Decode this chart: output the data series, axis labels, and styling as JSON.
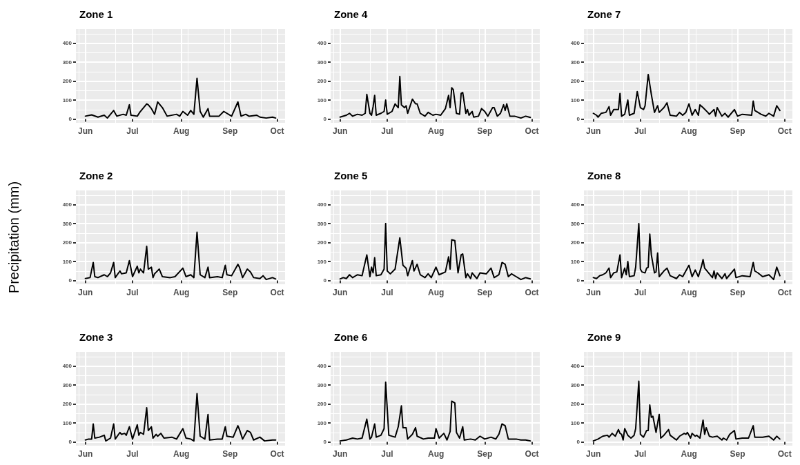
{
  "chart_data": [
    {
      "type": "line",
      "title": "Zone 1",
      "color": "#000000",
      "grid": true,
      "xlim": [
        "--05-26",
        "--10-06"
      ],
      "xticks": [
        {
          "value": "--06-01",
          "label": "Jun"
        },
        {
          "value": "--07-01",
          "label": "Jul"
        },
        {
          "value": "--08-01",
          "label": "Aug"
        },
        {
          "value": "--09-01",
          "label": "Sep"
        },
        {
          "value": "--10-01",
          "label": "Oct"
        }
      ],
      "ylim": [
        -20,
        475
      ],
      "yticks": [
        0,
        100,
        200,
        300,
        400
      ],
      "x": [
        "--06-01",
        "--06-05",
        "--06-09",
        "--06-13",
        "--06-15",
        "--06-19",
        "--06-21",
        "--06-25",
        "--06-27",
        "--06-29",
        "--06-30",
        "--07-04",
        "--07-06",
        "--07-10",
        "--07-11",
        "--07-13",
        "--07-15",
        "--07-17",
        "--07-20",
        "--07-23",
        "--07-29",
        "--07-31",
        "--08-02",
        "--08-05",
        "--08-07",
        "--08-09",
        "--08-11",
        "--08-13",
        "--08-15",
        "--08-18",
        "--08-19",
        "--08-25",
        "--08-28",
        "--09-02",
        "--09-06",
        "--09-08",
        "--09-11",
        "--09-13",
        "--09-18",
        "--09-20",
        "--09-24",
        "--09-28",
        "--09-30"
      ],
      "values": [
        15,
        22,
        10,
        20,
        5,
        45,
        15,
        25,
        20,
        75,
        20,
        15,
        40,
        80,
        75,
        55,
        25,
        90,
        60,
        15,
        25,
        15,
        40,
        20,
        45,
        25,
        215,
        40,
        10,
        55,
        15,
        15,
        40,
        15,
        90,
        15,
        25,
        15,
        20,
        10,
        5,
        10,
        5
      ]
    },
    {
      "type": "line",
      "title": "Zone 4",
      "color": "#000000",
      "grid": true,
      "xlim": [
        "--05-26",
        "--10-06"
      ],
      "xticks": [
        {
          "value": "--06-01",
          "label": "Jun"
        },
        {
          "value": "--07-01",
          "label": "Jul"
        },
        {
          "value": "--08-01",
          "label": "Aug"
        },
        {
          "value": "--09-01",
          "label": "Sep"
        },
        {
          "value": "--10-01",
          "label": "Oct"
        }
      ],
      "ylim": [
        -20,
        475
      ],
      "yticks": [
        0,
        100,
        200,
        300,
        400
      ],
      "x": [
        "--06-01",
        "--06-05",
        "--06-07",
        "--06-09",
        "--06-12",
        "--06-15",
        "--06-17",
        "--06-18",
        "--06-20",
        "--06-21",
        "--06-22",
        "--06-23",
        "--06-24",
        "--06-27",
        "--06-29",
        "--06-30",
        "--07-01",
        "--07-04",
        "--07-06",
        "--07-08",
        "--07-09",
        "--07-10",
        "--07-12",
        "--07-13",
        "--07-14",
        "--07-17",
        "--07-19",
        "--07-20",
        "--07-22",
        "--07-25",
        "--07-27",
        "--07-30",
        "--08-01",
        "--08-04",
        "--08-07",
        "--08-09",
        "--08-10",
        "--08-11",
        "--08-12",
        "--08-14",
        "--08-16",
        "--08-17",
        "--08-18",
        "--08-20",
        "--08-21",
        "--08-22",
        "--08-24",
        "--08-25",
        "--08-28",
        "--08-30",
        "--09-01",
        "--09-03",
        "--09-06",
        "--09-07",
        "--09-09",
        "--09-11",
        "--09-13",
        "--09-14",
        "--09-15",
        "--09-17",
        "--09-20",
        "--09-24",
        "--09-27",
        "--09-30"
      ],
      "values": [
        10,
        20,
        30,
        15,
        25,
        20,
        30,
        130,
        30,
        20,
        65,
        125,
        20,
        30,
        40,
        100,
        25,
        40,
        80,
        60,
        225,
        75,
        60,
        70,
        30,
        105,
        80,
        80,
        30,
        15,
        35,
        20,
        25,
        20,
        55,
        125,
        60,
        165,
        155,
        30,
        25,
        135,
        140,
        30,
        50,
        20,
        40,
        10,
        15,
        55,
        40,
        15,
        60,
        60,
        15,
        30,
        75,
        45,
        80,
        15,
        15,
        5,
        15,
        8
      ]
    },
    {
      "type": "line",
      "title": "Zone 7",
      "color": "#000000",
      "grid": true,
      "xlim": [
        "--05-26",
        "--10-06"
      ],
      "xticks": [
        {
          "value": "--06-01",
          "label": "Jun"
        },
        {
          "value": "--07-01",
          "label": "Jul"
        },
        {
          "value": "--08-01",
          "label": "Aug"
        },
        {
          "value": "--09-01",
          "label": "Sep"
        },
        {
          "value": "--10-01",
          "label": "Oct"
        }
      ],
      "ylim": [
        -20,
        475
      ],
      "yticks": [
        0,
        100,
        200,
        300,
        400
      ],
      "x": [
        "--06-01",
        "--06-03",
        "--06-04",
        "--06-06",
        "--06-09",
        "--06-11",
        "--06-12",
        "--06-14",
        "--06-17",
        "--06-18",
        "--06-19",
        "--06-21",
        "--06-23",
        "--06-24",
        "--06-27",
        "--06-29",
        "--07-01",
        "--07-03",
        "--07-04",
        "--07-06",
        "--07-08",
        "--07-10",
        "--07-12",
        "--07-13",
        "--07-16",
        "--07-18",
        "--07-20",
        "--07-24",
        "--07-26",
        "--07-28",
        "--07-30",
        "--08-01",
        "--08-03",
        "--08-05",
        "--08-07",
        "--08-08",
        "--08-10",
        "--08-13",
        "--08-14",
        "--08-17",
        "--08-18",
        "--08-19",
        "--08-22",
        "--08-24",
        "--08-26",
        "--08-30",
        "--09-01",
        "--09-04",
        "--09-10",
        "--09-11",
        "--09-12",
        "--09-16",
        "--09-19",
        "--09-21",
        "--09-24",
        "--09-26",
        "--09-28"
      ],
      "values": [
        30,
        20,
        10,
        30,
        35,
        65,
        20,
        50,
        50,
        135,
        15,
        25,
        100,
        20,
        30,
        145,
        60,
        50,
        70,
        235,
        130,
        35,
        70,
        35,
        60,
        85,
        20,
        15,
        35,
        20,
        35,
        80,
        20,
        50,
        20,
        75,
        60,
        35,
        25,
        50,
        15,
        60,
        15,
        30,
        10,
        50,
        15,
        25,
        20,
        95,
        45,
        25,
        15,
        30,
        15,
        70,
        45
      ]
    },
    {
      "type": "line",
      "title": "Zone 2",
      "ylabel": "Precipitation (mm)",
      "color": "#000000",
      "grid": true,
      "xlim": [
        "--05-26",
        "--10-06"
      ],
      "xticks": [
        {
          "value": "--06-01",
          "label": "Jun"
        },
        {
          "value": "--07-01",
          "label": "Jul"
        },
        {
          "value": "--08-01",
          "label": "Aug"
        },
        {
          "value": "--09-01",
          "label": "Sep"
        },
        {
          "value": "--10-01",
          "label": "Oct"
        }
      ],
      "ylim": [
        -20,
        475
      ],
      "yticks": [
        0,
        100,
        200,
        300,
        400
      ],
      "x": [
        "--06-01",
        "--06-04",
        "--06-06",
        "--06-07",
        "--06-09",
        "--06-13",
        "--06-15",
        "--06-17",
        "--06-19",
        "--06-20",
        "--06-23",
        "--06-24",
        "--06-27",
        "--06-29",
        "--07-01",
        "--07-04",
        "--07-05",
        "--07-06",
        "--07-08",
        "--07-10",
        "--07-11",
        "--07-13",
        "--07-14",
        "--07-15",
        "--07-18",
        "--07-20",
        "--07-25",
        "--07-28",
        "--08-02",
        "--08-04",
        "--08-07",
        "--08-09",
        "--08-11",
        "--08-13",
        "--08-16",
        "--08-18",
        "--08-19",
        "--08-24",
        "--08-27",
        "--08-29",
        "--08-30",
        "--09-02",
        "--09-06",
        "--09-07",
        "--09-09",
        "--09-12",
        "--09-14",
        "--09-16",
        "--09-20",
        "--09-22",
        "--09-24",
        "--09-28",
        "--09-30"
      ],
      "values": [
        10,
        15,
        95,
        20,
        15,
        30,
        20,
        40,
        95,
        15,
        50,
        35,
        40,
        105,
        20,
        75,
        40,
        60,
        40,
        180,
        60,
        70,
        15,
        35,
        60,
        20,
        15,
        20,
        65,
        20,
        30,
        15,
        255,
        30,
        15,
        70,
        15,
        20,
        15,
        80,
        30,
        25,
        85,
        70,
        15,
        60,
        45,
        15,
        10,
        25,
        5,
        15,
        8
      ]
    },
    {
      "type": "line",
      "title": "Zone 5",
      "color": "#000000",
      "grid": true,
      "xlim": [
        "--05-26",
        "--10-06"
      ],
      "xticks": [
        {
          "value": "--06-01",
          "label": "Jun"
        },
        {
          "value": "--07-01",
          "label": "Jul"
        },
        {
          "value": "--08-01",
          "label": "Aug"
        },
        {
          "value": "--09-01",
          "label": "Sep"
        },
        {
          "value": "--10-01",
          "label": "Oct"
        }
      ],
      "ylim": [
        -20,
        475
      ],
      "yticks": [
        0,
        100,
        200,
        300,
        400
      ],
      "x": [
        "--06-01",
        "--06-03",
        "--06-05",
        "--06-07",
        "--06-09",
        "--06-12",
        "--06-15",
        "--06-18",
        "--06-20",
        "--06-21",
        "--06-22",
        "--06-23",
        "--06-24",
        "--06-27",
        "--06-29",
        "--06-30",
        "--07-01",
        "--07-03",
        "--07-06",
        "--07-09",
        "--07-11",
        "--07-13",
        "--07-14",
        "--07-17",
        "--07-18",
        "--07-20",
        "--07-22",
        "--07-25",
        "--07-27",
        "--07-29",
        "--08-01",
        "--08-03",
        "--08-07",
        "--08-09",
        "--08-10",
        "--08-11",
        "--08-13",
        "--08-15",
        "--08-17",
        "--08-18",
        "--08-20",
        "--08-21",
        "--08-23",
        "--08-24",
        "--08-27",
        "--08-29",
        "--09-02",
        "--09-05",
        "--09-07",
        "--09-10",
        "--09-12",
        "--09-14",
        "--09-16",
        "--09-18",
        "--09-21",
        "--09-24",
        "--09-27",
        "--09-30"
      ],
      "values": [
        8,
        15,
        10,
        30,
        15,
        30,
        25,
        135,
        20,
        70,
        40,
        120,
        25,
        30,
        60,
        300,
        50,
        35,
        60,
        225,
        80,
        65,
        25,
        105,
        50,
        85,
        30,
        15,
        35,
        15,
        70,
        30,
        45,
        125,
        60,
        215,
        210,
        40,
        135,
        140,
        15,
        35,
        10,
        40,
        10,
        40,
        35,
        65,
        15,
        30,
        95,
        85,
        20,
        35,
        20,
        5,
        15,
        8
      ]
    },
    {
      "type": "line",
      "title": "Zone 8",
      "color": "#000000",
      "grid": true,
      "xlim": [
        "--05-26",
        "--10-06"
      ],
      "xticks": [
        {
          "value": "--06-01",
          "label": "Jun"
        },
        {
          "value": "--07-01",
          "label": "Jul"
        },
        {
          "value": "--08-01",
          "label": "Aug"
        },
        {
          "value": "--09-01",
          "label": "Sep"
        },
        {
          "value": "--10-01",
          "label": "Oct"
        }
      ],
      "ylim": [
        -20,
        475
      ],
      "yticks": [
        0,
        100,
        200,
        300,
        400
      ],
      "x": [
        "--06-01",
        "--06-03",
        "--06-05",
        "--06-07",
        "--06-09",
        "--06-11",
        "--06-12",
        "--06-14",
        "--06-16",
        "--06-18",
        "--06-19",
        "--06-21",
        "--06-22",
        "--06-23",
        "--06-24",
        "--06-27",
        "--06-28",
        "--06-30",
        "--07-01",
        "--07-02",
        "--07-04",
        "--07-05",
        "--07-06",
        "--07-07",
        "--07-08",
        "--07-10",
        "--07-11",
        "--07-12",
        "--07-13",
        "--07-16",
        "--07-18",
        "--07-20",
        "--07-24",
        "--07-26",
        "--07-28",
        "--08-01",
        "--08-03",
        "--08-05",
        "--08-07",
        "--08-09",
        "--08-10",
        "--08-11",
        "--08-14",
        "--08-16",
        "--08-17",
        "--08-18",
        "--08-19",
        "--08-22",
        "--08-24",
        "--08-25",
        "--08-30",
        "--08-31",
        "--09-04",
        "--09-09",
        "--09-11",
        "--09-12",
        "--09-14",
        "--09-17",
        "--09-21",
        "--09-24",
        "--09-26",
        "--09-28"
      ],
      "values": [
        15,
        10,
        25,
        30,
        40,
        65,
        15,
        40,
        45,
        135,
        15,
        65,
        30,
        100,
        20,
        25,
        70,
        300,
        60,
        45,
        40,
        65,
        70,
        245,
        135,
        40,
        45,
        145,
        20,
        50,
        65,
        25,
        10,
        30,
        20,
        80,
        20,
        55,
        20,
        75,
        110,
        65,
        35,
        15,
        50,
        10,
        40,
        10,
        35,
        10,
        60,
        15,
        25,
        20,
        95,
        50,
        40,
        20,
        30,
        5,
        70,
        25
      ]
    },
    {
      "type": "line",
      "title": "Zone 3",
      "color": "#000000",
      "grid": true,
      "xlim": [
        "--05-26",
        "--10-06"
      ],
      "xticks": [
        {
          "value": "--06-01",
          "label": "Jun"
        },
        {
          "value": "--07-01",
          "label": "Jul"
        },
        {
          "value": "--08-01",
          "label": "Aug"
        },
        {
          "value": "--09-01",
          "label": "Sep"
        },
        {
          "value": "--10-01",
          "label": "Oct"
        }
      ],
      "ylim": [
        -20,
        475
      ],
      "yticks": [
        0,
        100,
        200,
        300,
        400
      ],
      "x": [
        "--06-01",
        "--06-03",
        "--06-05",
        "--06-06",
        "--06-07",
        "--06-10",
        "--06-13",
        "--06-14",
        "--06-17",
        "--06-19",
        "--06-20",
        "--06-23",
        "--06-24",
        "--06-26",
        "--06-27",
        "--06-29",
        "--07-01",
        "--07-04",
        "--07-05",
        "--07-06",
        "--07-08",
        "--07-10",
        "--07-11",
        "--07-13",
        "--07-14",
        "--07-16",
        "--07-17",
        "--07-19",
        "--07-21",
        "--07-26",
        "--07-29",
        "--08-02",
        "--08-04",
        "--08-07",
        "--08-09",
        "--08-11",
        "--08-13",
        "--08-16",
        "--08-18",
        "--08-19",
        "--08-24",
        "--08-27",
        "--08-29",
        "--08-30",
        "--09-03",
        "--09-06",
        "--09-07",
        "--09-09",
        "--09-12",
        "--09-14",
        "--09-16",
        "--09-20",
        "--09-23",
        "--09-28",
        "--09-30"
      ],
      "values": [
        10,
        15,
        15,
        95,
        20,
        25,
        35,
        5,
        20,
        95,
        15,
        50,
        40,
        45,
        35,
        80,
        15,
        90,
        35,
        50,
        40,
        180,
        60,
        80,
        20,
        40,
        30,
        45,
        20,
        25,
        15,
        70,
        20,
        15,
        5,
        255,
        30,
        15,
        145,
        10,
        15,
        15,
        80,
        30,
        25,
        85,
        65,
        15,
        60,
        50,
        10,
        25,
        5,
        10,
        10
      ]
    },
    {
      "type": "line",
      "title": "Zone 6",
      "color": "#000000",
      "grid": true,
      "xlim": [
        "--05-26",
        "--10-06"
      ],
      "xticks": [
        {
          "value": "--06-01",
          "label": "Jun"
        },
        {
          "value": "--07-01",
          "label": "Jul"
        },
        {
          "value": "--08-01",
          "label": "Aug"
        },
        {
          "value": "--09-01",
          "label": "Sep"
        },
        {
          "value": "--10-01",
          "label": "Oct"
        }
      ],
      "ylim": [
        -20,
        475
      ],
      "yticks": [
        0,
        100,
        200,
        300,
        400
      ],
      "x": [
        "--06-01",
        "--06-05",
        "--06-09",
        "--06-12",
        "--06-15",
        "--06-18",
        "--06-20",
        "--06-21",
        "--06-23",
        "--06-24",
        "--06-27",
        "--06-29",
        "--06-30",
        "--07-02",
        "--07-06",
        "--07-08",
        "--07-10",
        "--07-11",
        "--07-13",
        "--07-14",
        "--07-17",
        "--07-19",
        "--07-20",
        "--07-24",
        "--07-27",
        "--07-31",
        "--08-01",
        "--08-03",
        "--08-06",
        "--08-08",
        "--08-10",
        "--08-11",
        "--08-13",
        "--08-14",
        "--08-16",
        "--08-18",
        "--08-19",
        "--08-23",
        "--08-26",
        "--08-29",
        "--09-01",
        "--09-05",
        "--09-08",
        "--09-10",
        "--09-12",
        "--09-14",
        "--09-16",
        "--09-19",
        "--09-21",
        "--09-24",
        "--09-27",
        "--09-30"
      ],
      "values": [
        5,
        10,
        20,
        15,
        20,
        120,
        15,
        25,
        95,
        25,
        35,
        70,
        315,
        35,
        25,
        80,
        190,
        75,
        75,
        15,
        40,
        75,
        30,
        15,
        20,
        20,
        70,
        20,
        45,
        10,
        55,
        215,
        205,
        50,
        20,
        80,
        10,
        15,
        10,
        30,
        15,
        25,
        15,
        40,
        95,
        85,
        15,
        15,
        15,
        10,
        10,
        5
      ]
    },
    {
      "type": "line",
      "title": "Zone 9",
      "color": "#000000",
      "grid": true,
      "xlim": [
        "--05-26",
        "--10-06"
      ],
      "xticks": [
        {
          "value": "--06-01",
          "label": "Jun"
        },
        {
          "value": "--07-01",
          "label": "Jul"
        },
        {
          "value": "--08-01",
          "label": "Aug"
        },
        {
          "value": "--09-01",
          "label": "Sep"
        },
        {
          "value": "--10-01",
          "label": "Oct"
        }
      ],
      "ylim": [
        -20,
        475
      ],
      "yticks": [
        0,
        100,
        200,
        300,
        400
      ],
      "x": [
        "--06-01",
        "--06-04",
        "--06-07",
        "--06-10",
        "--06-11",
        "--06-13",
        "--06-15",
        "--06-17",
        "--06-18",
        "--06-19",
        "--06-20",
        "--06-21",
        "--06-23",
        "--06-25",
        "--06-27",
        "--06-28",
        "--06-30",
        "--07-01",
        "--07-03",
        "--07-05",
        "--07-06",
        "--07-07",
        "--07-08",
        "--07-09",
        "--07-11",
        "--07-13",
        "--07-14",
        "--07-16",
        "--07-19",
        "--07-20",
        "--07-24",
        "--07-26",
        "--07-29",
        "--07-30",
        "--07-31",
        "--08-02",
        "--08-03",
        "--08-05",
        "--08-06",
        "--08-08",
        "--08-10",
        "--08-11",
        "--08-12",
        "--08-14",
        "--08-16",
        "--08-19",
        "--08-22",
        "--08-23",
        "--08-25",
        "--08-27",
        "--08-30",
        "--08-31",
        "--09-04",
        "--09-08",
        "--09-11",
        "--09-12",
        "--09-14",
        "--09-17",
        "--09-21",
        "--09-24",
        "--09-26",
        "--09-28"
      ],
      "values": [
        5,
        15,
        30,
        35,
        25,
        45,
        30,
        65,
        45,
        40,
        10,
        70,
        35,
        20,
        35,
        70,
        320,
        40,
        25,
        60,
        60,
        195,
        130,
        135,
        50,
        145,
        20,
        35,
        65,
        35,
        10,
        30,
        45,
        40,
        50,
        20,
        45,
        30,
        35,
        20,
        115,
        40,
        75,
        30,
        25,
        30,
        10,
        20,
        10,
        40,
        60,
        15,
        20,
        20,
        85,
        25,
        25,
        25,
        30,
        10,
        30,
        15
      ]
    }
  ]
}
